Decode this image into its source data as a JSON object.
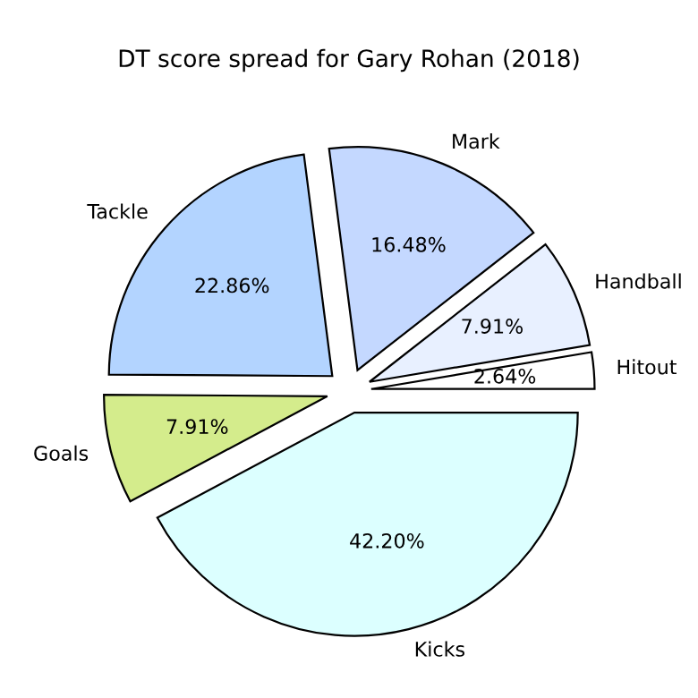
{
  "chart_data": {
    "type": "pie",
    "title": "DT score spread for Gary Rohan (2018)",
    "categories": [
      "Hitout",
      "Handball",
      "Mark",
      "Tackle",
      "Goals",
      "Kicks"
    ],
    "values": [
      2.64,
      7.91,
      16.48,
      22.86,
      7.91,
      42.2
    ],
    "value_labels": [
      "2.64%",
      "7.91%",
      "16.48%",
      "22.86%",
      "7.91%",
      "42.20%"
    ],
    "colors": [
      "#ffffff",
      "#e8f0ff",
      "#c4d8ff",
      "#b3d4ff",
      "#d4ec8c",
      "#dcffff"
    ]
  }
}
